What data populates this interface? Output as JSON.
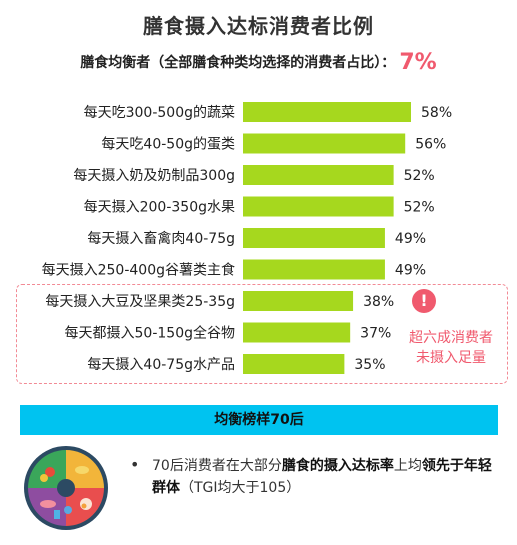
{
  "title": "膳食摄入达标消费者比例",
  "subtitle": {
    "label": "膳食均衡者（全部膳食种类均选择的消费者占比）：",
    "value": "7%"
  },
  "colors": {
    "bar": "#a6d81e",
    "alert": "#f05a6e",
    "banner": "#00c3f0"
  },
  "chart_data": {
    "type": "bar",
    "orientation": "horizontal",
    "categories": [
      "每天吃300-500g的蔬菜",
      "每天吃40-50g的蛋类",
      "每天摄入奶及奶制品300g",
      "每天摄入200-350g水果",
      "每天摄入畜禽肉40-75g",
      "每天摄入250-400g谷薯类主食",
      "每天摄入大豆及坚果类25-35g",
      "每天都摄入50-150g全谷物",
      "每天摄入40-75g水产品"
    ],
    "values": [
      58,
      56,
      52,
      52,
      49,
      49,
      38,
      37,
      35
    ],
    "value_labels": [
      "58%",
      "56%",
      "52%",
      "52%",
      "49%",
      "49%",
      "38%",
      "37%",
      "35%"
    ],
    "value_unit": "%",
    "xlim": [
      0,
      100
    ],
    "grid": false,
    "legend": "none"
  },
  "alert": {
    "icon": "exclamation-icon",
    "text_line1": "超六成消费者",
    "text_line2": "未摄入足量"
  },
  "banner": "均衡榜样70后",
  "summary": {
    "icon": "food-plate-icon",
    "bullet": "•",
    "p1": "70后消费者在大部分",
    "b1": "膳食的摄入达标率",
    "p2": "上均",
    "b2": "领先于年轻群体",
    "p3": "（TGI均大于105）"
  }
}
